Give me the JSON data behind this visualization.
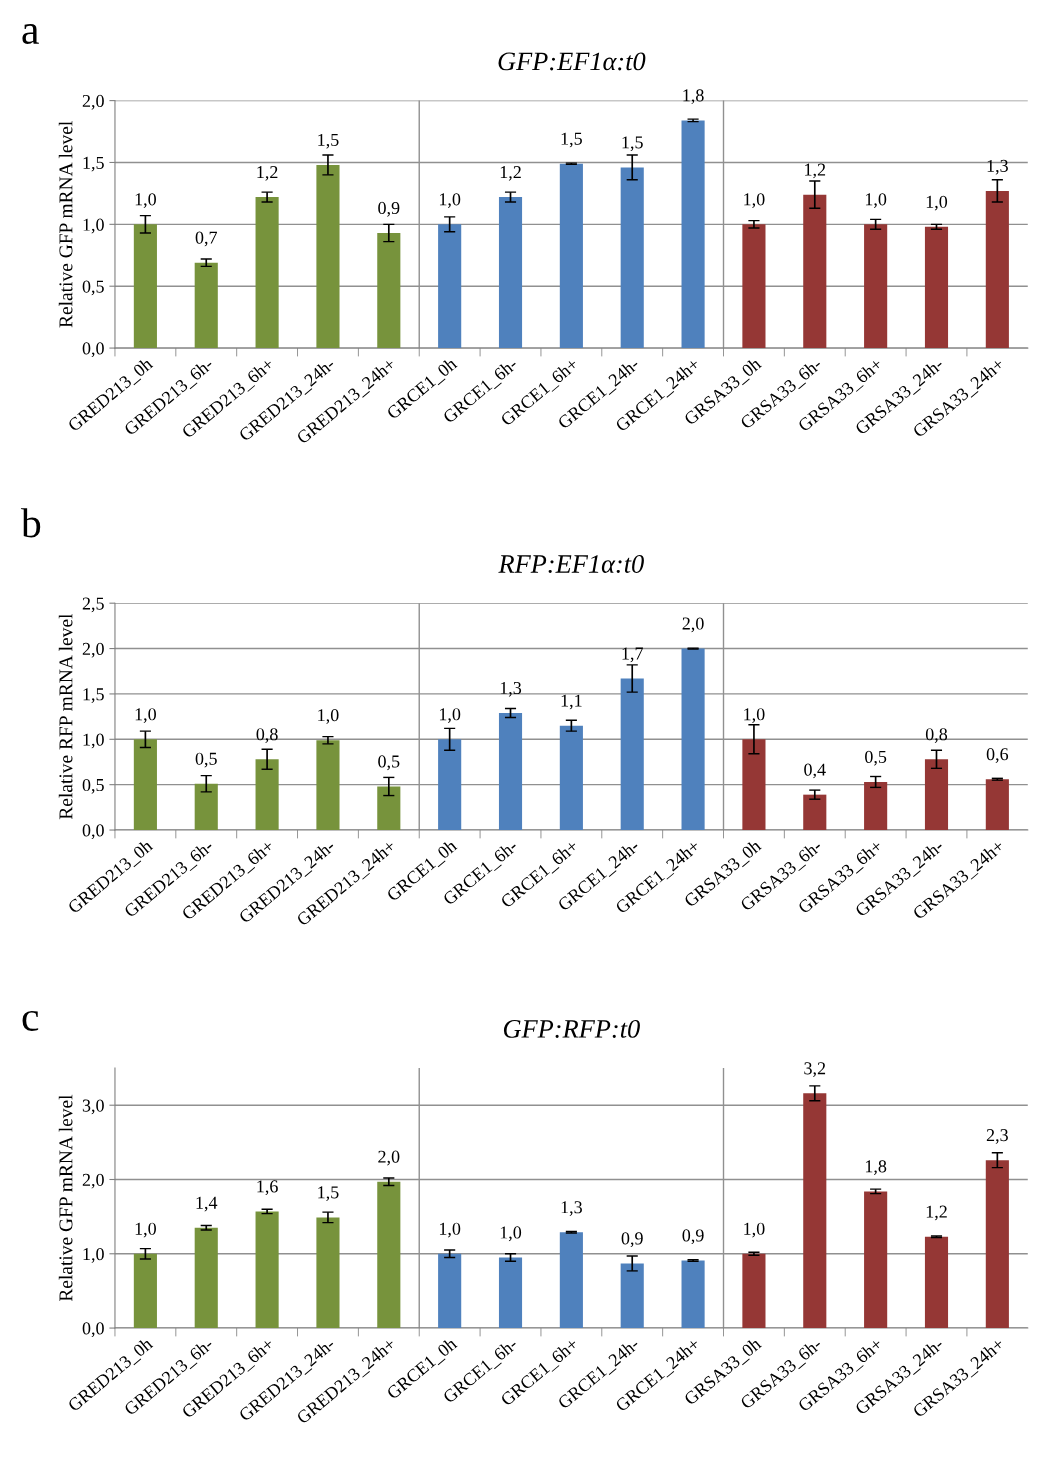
{
  "chart_data": [
    {
      "type": "bar",
      "title": "GFP:EF1α:t0",
      "ylabel": "Relative GFP mRNA level",
      "annotations": [
        "a"
      ],
      "categories": [
        "GRED213_0h",
        "GRED213_6h-",
        "GRED213_6h+",
        "GRED213_24h-",
        "GRED213_24h+",
        "GRCE1_0h",
        "GRCE1_6h-",
        "GRCE1_6h+",
        "GRCE1_24h-",
        "GRCE1_24h+",
        "GRSA33_0h",
        "GRSA33_6h-",
        "GRSA33_6h+",
        "GRSA33_24h-",
        "GRSA33_24h+"
      ],
      "values": [
        1.0,
        0.69,
        1.22,
        1.48,
        0.93,
        1.0,
        1.22,
        1.49,
        1.46,
        1.84,
        1.0,
        1.24,
        1.0,
        0.98,
        1.27
      ],
      "errors": [
        0.07,
        0.03,
        0.04,
        0.08,
        0.07,
        0.06,
        0.04,
        0.005,
        0.1,
        0.01,
        0.03,
        0.11,
        0.04,
        0.02,
        0.09
      ],
      "value_labels": [
        "1,0",
        "0,7",
        "1,2",
        "1,5",
        "0,9",
        "1,0",
        "1,2",
        "1,5",
        "1,5",
        "1,8",
        "1,0",
        "1,2",
        "1,0",
        "1,0",
        "1,3"
      ],
      "colors": [
        "#77933c",
        "#77933c",
        "#77933c",
        "#77933c",
        "#77933c",
        "#4f81bd",
        "#4f81bd",
        "#4f81bd",
        "#4f81bd",
        "#4f81bd",
        "#953735",
        "#953735",
        "#953735",
        "#953735",
        "#953735"
      ],
      "ylim": [
        0,
        2.0
      ],
      "yticks": [
        {
          "value": 0,
          "label": "0,0"
        },
        {
          "value": 0.5,
          "label": "0,5"
        },
        {
          "value": 1.0,
          "label": "1,0"
        },
        {
          "value": 1.5,
          "label": "1,5"
        },
        {
          "value": 2.0,
          "label": "2,0"
        }
      ],
      "grid": "y",
      "legend": false
    },
    {
      "type": "bar",
      "title": "RFP:EF1α:t0",
      "ylabel": "Relative RFP mRNA level",
      "annotations": [
        "b"
      ],
      "categories": [
        "GRED213_0h",
        "GRED213_6h-",
        "GRED213_6h+",
        "GRED213_24h-",
        "GRED213_24h+",
        "GRCE1_0h",
        "GRCE1_6h-",
        "GRCE1_6h+",
        "GRCE1_24h-",
        "GRCE1_24h+",
        "GRSA33_0h",
        "GRSA33_6h-",
        "GRSA33_6h+",
        "GRSA33_24h-",
        "GRSA33_24h+"
      ],
      "values": [
        1.0,
        0.51,
        0.78,
        0.99,
        0.48,
        1.0,
        1.29,
        1.15,
        1.67,
        2.0,
        1.0,
        0.39,
        0.53,
        0.78,
        0.56
      ],
      "errors": [
        0.09,
        0.09,
        0.11,
        0.04,
        0.1,
        0.12,
        0.05,
        0.06,
        0.15,
        0.005,
        0.16,
        0.05,
        0.06,
        0.1,
        0.01
      ],
      "value_labels": [
        "1,0",
        "0,5",
        "0,8",
        "1,0",
        "0,5",
        "1,0",
        "1,3",
        "1,1",
        "1,7",
        "2,0",
        "1,0",
        "0,4",
        "0,5",
        "0,8",
        "0,6"
      ],
      "colors": [
        "#77933c",
        "#77933c",
        "#77933c",
        "#77933c",
        "#77933c",
        "#4f81bd",
        "#4f81bd",
        "#4f81bd",
        "#4f81bd",
        "#4f81bd",
        "#953735",
        "#953735",
        "#953735",
        "#953735",
        "#953735"
      ],
      "ylim": [
        0,
        2.5
      ],
      "yticks": [
        {
          "value": 0,
          "label": "0,0"
        },
        {
          "value": 0.5,
          "label": "0,5"
        },
        {
          "value": 1.0,
          "label": "1,0"
        },
        {
          "value": 1.5,
          "label": "1,5"
        },
        {
          "value": 2.0,
          "label": "2,0"
        },
        {
          "value": 2.5,
          "label": "2,5"
        }
      ],
      "grid": "y",
      "legend": false
    },
    {
      "type": "bar",
      "title": "GFP:RFP:t0",
      "ylabel": "Relative GFP mRNA level",
      "annotations": [
        "c"
      ],
      "categories": [
        "GRED213_0h",
        "GRED213_6h-",
        "GRED213_6h+",
        "GRED213_24h-",
        "GRED213_24h+",
        "GRCE1_0h",
        "GRCE1_6h-",
        "GRCE1_6h+",
        "GRCE1_24h-",
        "GRCE1_24h+",
        "GRSA33_0h",
        "GRSA33_6h-",
        "GRSA33_6h+",
        "GRSA33_24h-",
        "GRSA33_24h+"
      ],
      "values": [
        1.0,
        1.35,
        1.57,
        1.49,
        1.97,
        1.0,
        0.95,
        1.29,
        0.87,
        0.91,
        1.0,
        3.16,
        1.84,
        1.23,
        2.26
      ],
      "errors": [
        0.07,
        0.03,
        0.03,
        0.07,
        0.05,
        0.05,
        0.05,
        0.01,
        0.1,
        0.01,
        0.02,
        0.1,
        0.03,
        0.01,
        0.1
      ],
      "value_labels": [
        "1,0",
        "1,4",
        "1,6",
        "1,5",
        "2,0",
        "1,0",
        "1,0",
        "1,3",
        "0,9",
        "0,9",
        "1,0",
        "3,2",
        "1,8",
        "1,2",
        "2,3"
      ],
      "colors": [
        "#77933c",
        "#77933c",
        "#77933c",
        "#77933c",
        "#77933c",
        "#4f81bd",
        "#4f81bd",
        "#4f81bd",
        "#4f81bd",
        "#4f81bd",
        "#953735",
        "#953735",
        "#953735",
        "#953735",
        "#953735"
      ],
      "ylim": [
        0,
        3.5
      ],
      "yticks": [
        {
          "value": 0,
          "label": "0,0"
        },
        {
          "value": 1.0,
          "label": "1,0"
        },
        {
          "value": 2.0,
          "label": "2,0"
        },
        {
          "value": 3.0,
          "label": "3,0"
        }
      ],
      "grid": "y",
      "legend": false
    }
  ]
}
